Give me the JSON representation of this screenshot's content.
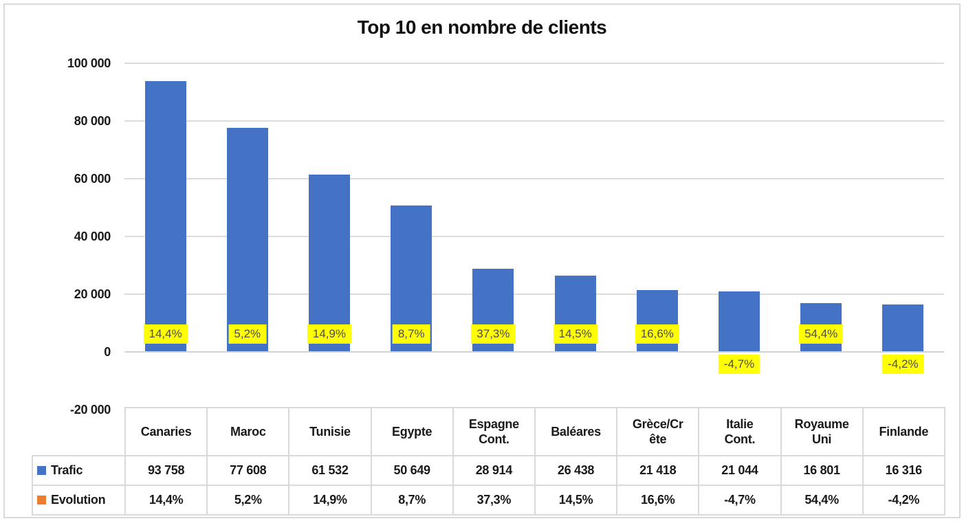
{
  "chart_data": {
    "type": "bar",
    "title": "Top 10 en nombre de clients",
    "categories": [
      "Canaries",
      "Maroc",
      "Tunisie",
      "Egypte",
      "Espagne Cont.",
      "Baléares",
      "Grèce/Crête",
      "Italie Cont.",
      "Royaume Uni",
      "Finlande"
    ],
    "series": [
      {
        "name": "Trafic",
        "color": "#4472C4",
        "values": [
          93758,
          77608,
          61532,
          50649,
          28914,
          26438,
          21418,
          21044,
          16801,
          16316
        ],
        "display": [
          "93 758",
          "77 608",
          "61 532",
          "50 649",
          "28 914",
          "26 438",
          "21 418",
          "21 044",
          "16 801",
          "16 316"
        ]
      },
      {
        "name": "Evolution",
        "color": "#ED7D31",
        "values_pct": [
          14.4,
          5.2,
          14.9,
          8.7,
          37.3,
          14.5,
          16.6,
          -4.7,
          54.4,
          -4.2
        ],
        "display": [
          "14,4%",
          "5,2%",
          "14,9%",
          "8,7%",
          "37,3%",
          "14,5%",
          "16,6%",
          "-4,7%",
          "54,4%",
          "-4,2%"
        ]
      }
    ],
    "y_axis": {
      "min": -20000,
      "max": 100000,
      "step": 20000,
      "ticks": [
        100000,
        80000,
        60000,
        40000,
        20000,
        0,
        -20000
      ],
      "tick_labels": [
        "100 000",
        "80 000",
        "60 000",
        "40 000",
        "20 000",
        "0",
        "-20 000"
      ]
    },
    "grid": true,
    "legend_position": "table-left",
    "data_labels": {
      "series": "Evolution",
      "background": "#FFFF00",
      "text_color": "#4D4D4D"
    }
  },
  "table": {
    "headers_display": [
      "Canaries",
      "Maroc",
      "Tunisie",
      "Egypte",
      "Espagne\nCont.",
      "Baléares",
      "Grèce/Cr\nête",
      "Italie\nCont.",
      "Royaume\nUni",
      "Finlande"
    ]
  }
}
